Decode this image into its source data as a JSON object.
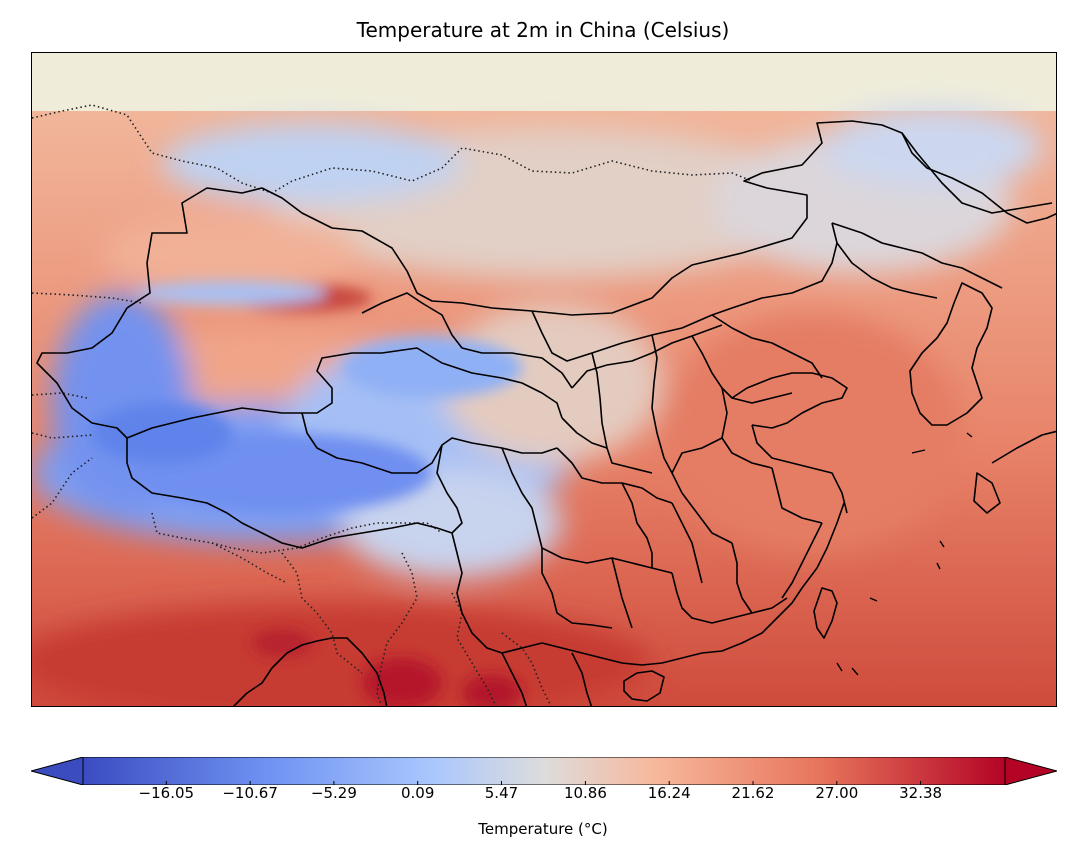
{
  "title": "Temperature at 2m in China (Celsius)",
  "colorbar": {
    "label": "Temperature (°C)",
    "ticks": [
      "−16.05",
      "−10.67",
      "−5.29",
      "0.09",
      "5.47",
      "10.86",
      "16.24",
      "21.62",
      "27.00",
      "32.38"
    ],
    "tick_values": [
      -16.05,
      -10.67,
      -5.29,
      0.09,
      5.47,
      10.86,
      16.24,
      21.62,
      27.0,
      32.38
    ],
    "vmin": -21.4,
    "vmax": 37.8,
    "extend": "both",
    "colormap": "coolwarm",
    "cold_color": "#3b4cc0",
    "neutral_color": "#dddcdc",
    "warm_color": "#b40426"
  },
  "map": {
    "region": "China",
    "land_background_color": "#efecda",
    "border_color": "#000000"
  }
}
